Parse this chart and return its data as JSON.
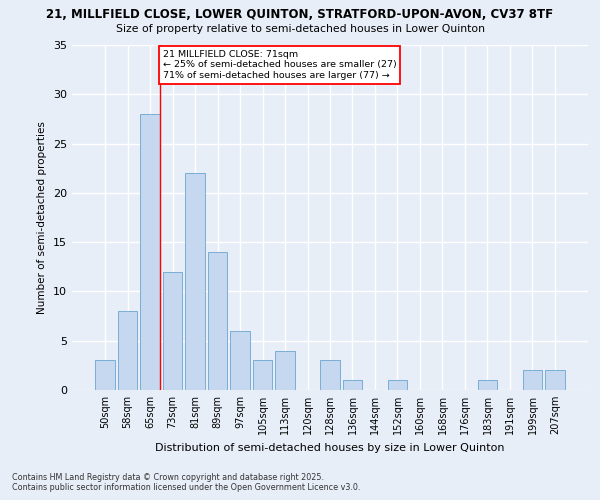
{
  "title1": "21, MILLFIELD CLOSE, LOWER QUINTON, STRATFORD-UPON-AVON, CV37 8TF",
  "title2": "Size of property relative to semi-detached houses in Lower Quinton",
  "xlabel": "Distribution of semi-detached houses by size in Lower Quinton",
  "ylabel": "Number of semi-detached properties",
  "footer1": "Contains HM Land Registry data © Crown copyright and database right 2025.",
  "footer2": "Contains public sector information licensed under the Open Government Licence v3.0.",
  "categories": [
    "50sqm",
    "58sqm",
    "65sqm",
    "73sqm",
    "81sqm",
    "89sqm",
    "97sqm",
    "105sqm",
    "113sqm",
    "120sqm",
    "128sqm",
    "136sqm",
    "144sqm",
    "152sqm",
    "160sqm",
    "168sqm",
    "176sqm",
    "183sqm",
    "191sqm",
    "199sqm",
    "207sqm"
  ],
  "values": [
    3,
    8,
    28,
    12,
    22,
    14,
    6,
    3,
    4,
    0,
    3,
    1,
    0,
    1,
    0,
    0,
    0,
    1,
    0,
    2,
    2
  ],
  "bar_color": "#c5d8f0",
  "bar_edge_color": "#7aaed6",
  "red_line_index": 2,
  "annotation_title": "21 MILLFIELD CLOSE: 71sqm",
  "annotation_line1": "← 25% of semi-detached houses are smaller (27)",
  "annotation_line2": "71% of semi-detached houses are larger (77) →",
  "annotation_box_color": "white",
  "annotation_box_edge": "red",
  "ylim": [
    0,
    35
  ],
  "yticks": [
    0,
    5,
    10,
    15,
    20,
    25,
    30,
    35
  ],
  "background_color": "#e8eef8",
  "grid_color": "#ffffff"
}
